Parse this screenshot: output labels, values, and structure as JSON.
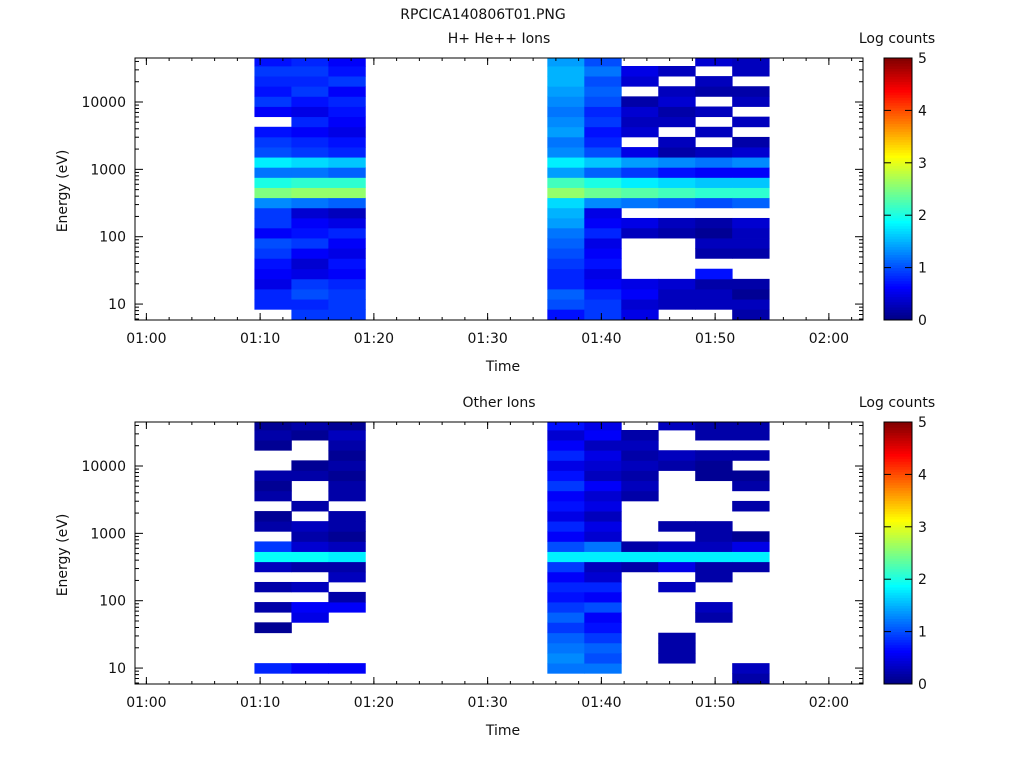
{
  "figure_title": "RPCICA140806T01.PNG",
  "chart_data": [
    {
      "type": "heatmap",
      "title": "H+ He++ Ions",
      "xlabel": "Time",
      "ylabel": "Energy (eV)",
      "colorbar_label": "Log counts",
      "xlim": [
        "00:59",
        "02:03"
      ],
      "x_ticks": [
        "01:00",
        "01:10",
        "01:20",
        "01:30",
        "01:40",
        "01:50",
        "02:00"
      ],
      "ylim": [
        5.8,
        45000
      ],
      "yscale": "log",
      "y_ticks": [
        "10",
        "100",
        "1000",
        "10000"
      ],
      "colorbar_range": [
        0,
        5
      ],
      "colorbar_ticks": [
        "0",
        "1",
        "2",
        "3",
        "4",
        "5"
      ],
      "column_times": [
        "01:09:30",
        "01:12:45",
        "01:16:00",
        "01:35:15",
        "01:38:30",
        "01:41:45",
        "01:45:00",
        "01:48:15",
        "01:51:30"
      ],
      "column_width_minutes": 3.25,
      "energy_bins_eV": [
        7,
        10,
        14,
        20,
        28,
        40,
        57,
        80,
        114,
        160,
        225,
        320,
        450,
        640,
        900,
        1280,
        1800,
        2550,
        3600,
        5100,
        7200,
        10200,
        14400,
        20400,
        28800,
        40700
      ],
      "log_counts": [
        [
          null,
          0.8,
          0.8,
          0.5,
          0.6,
          0.7,
          0.9,
          1.0,
          0.6,
          0.9,
          0.9,
          1.3,
          2.5,
          2.0,
          1.2,
          1.8,
          1.0,
          0.9,
          0.7,
          null,
          0.6,
          0.9,
          0.7,
          0.8,
          0.9,
          0.7
        ],
        [
          0.9,
          0.8,
          1.0,
          0.9,
          0.5,
          0.4,
          0.6,
          0.9,
          0.7,
          0.6,
          0.4,
          1.2,
          2.6,
          2.1,
          1.2,
          1.7,
          0.9,
          0.8,
          0.6,
          0.8,
          0.5,
          0.7,
          0.9,
          0.8,
          0.9,
          0.8
        ],
        [
          0.9,
          0.9,
          0.9,
          0.8,
          0.6,
          0.7,
          0.5,
          0.6,
          0.8,
          0.5,
          0.3,
          1.1,
          2.6,
          2.1,
          1.1,
          1.6,
          0.8,
          0.7,
          0.5,
          0.6,
          0.7,
          0.8,
          0.6,
          0.9,
          0.7,
          0.6
        ],
        [
          0.7,
          1.0,
          1.1,
          0.8,
          0.8,
          0.9,
          1.0,
          1.1,
          1.2,
          1.4,
          1.5,
          1.7,
          2.6,
          2.2,
          1.4,
          1.8,
          1.3,
          1.2,
          1.4,
          1.3,
          1.2,
          1.3,
          1.4,
          1.5,
          1.5,
          1.4
        ],
        [
          0.9,
          0.9,
          0.8,
          0.6,
          0.5,
          0.7,
          0.6,
          0.5,
          0.8,
          0.6,
          0.5,
          1.3,
          2.4,
          2.0,
          1.1,
          1.6,
          1.0,
          0.8,
          0.7,
          0.9,
          0.8,
          1.0,
          1.1,
          1.0,
          1.2,
          1.0
        ],
        [
          0.5,
          0.4,
          0.6,
          0.5,
          null,
          null,
          null,
          null,
          0.3,
          0.5,
          null,
          1.2,
          2.3,
          1.8,
          0.9,
          1.4,
          0.5,
          null,
          0.4,
          0.3,
          0.4,
          0.2,
          null,
          0.4,
          0.5,
          null
        ],
        [
          null,
          0.3,
          0.3,
          0.4,
          null,
          null,
          null,
          null,
          0.2,
          0.3,
          null,
          1.1,
          2.2,
          1.7,
          0.7,
          1.3,
          0.2,
          0.3,
          null,
          0.3,
          0.2,
          0.4,
          0.3,
          null,
          0.3,
          null
        ],
        [
          null,
          0.3,
          0.3,
          0.2,
          0.7,
          null,
          0.2,
          0.3,
          0.1,
          0.2,
          null,
          1.0,
          2.1,
          1.6,
          0.6,
          1.2,
          0.3,
          null,
          0.3,
          null,
          0.3,
          null,
          0.2,
          0.3,
          null,
          0.4
        ],
        [
          0.2,
          0.3,
          0.1,
          0.2,
          null,
          null,
          0.2,
          0.3,
          0.3,
          0.4,
          null,
          1.1,
          2.1,
          1.6,
          0.6,
          1.3,
          0.4,
          0.2,
          null,
          0.3,
          null,
          0.3,
          0.2,
          null,
          0.3,
          0.3
        ]
      ]
    },
    {
      "type": "heatmap",
      "title": "Other Ions",
      "xlabel": "Time",
      "ylabel": "Energy (eV)",
      "colorbar_label": "Log counts",
      "xlim": [
        "00:59",
        "02:03"
      ],
      "x_ticks": [
        "01:00",
        "01:10",
        "01:20",
        "01:30",
        "01:40",
        "01:50",
        "02:00"
      ],
      "ylim": [
        5.8,
        45000
      ],
      "yscale": "log",
      "y_ticks": [
        "10",
        "100",
        "1000",
        "10000"
      ],
      "colorbar_range": [
        0,
        5
      ],
      "colorbar_ticks": [
        "0",
        "1",
        "2",
        "3",
        "4",
        "5"
      ],
      "column_times": [
        "01:09:30",
        "01:12:45",
        "01:16:00",
        "01:35:15",
        "01:38:30",
        "01:41:45",
        "01:45:00",
        "01:48:15",
        "01:51:30"
      ],
      "column_width_minutes": 3.25,
      "energy_bins_eV": [
        7,
        10,
        14,
        20,
        28,
        40,
        57,
        80,
        114,
        160,
        225,
        320,
        450,
        640,
        900,
        1280,
        1800,
        2550,
        3600,
        5100,
        7200,
        10200,
        14400,
        20400,
        28800,
        40700
      ],
      "log_counts": [
        [
          null,
          0.8,
          null,
          null,
          null,
          0.1,
          null,
          0.2,
          null,
          0.2,
          null,
          0.3,
          1.9,
          0.9,
          null,
          0.2,
          0.1,
          null,
          0.2,
          0.1,
          0.2,
          null,
          null,
          0.1,
          0.2,
          0.1
        ],
        [
          null,
          0.6,
          null,
          null,
          null,
          null,
          0.5,
          0.6,
          null,
          0.3,
          null,
          0.2,
          1.9,
          0.4,
          0.2,
          0.3,
          null,
          0.2,
          null,
          null,
          0.2,
          0.1,
          null,
          null,
          0.1,
          0.2
        ],
        [
          null,
          0.6,
          null,
          null,
          null,
          null,
          null,
          0.6,
          0.2,
          null,
          0.3,
          0.2,
          1.8,
          0.3,
          0.1,
          0.2,
          0.2,
          null,
          0.2,
          0.2,
          0.1,
          0.2,
          0.1,
          0.2,
          0.3,
          0.1
        ],
        [
          null,
          1.2,
          1.3,
          1.2,
          1.1,
          0.9,
          1.1,
          0.9,
          0.7,
          0.8,
          0.6,
          0.9,
          1.8,
          1.0,
          0.6,
          0.8,
          0.5,
          0.7,
          0.6,
          0.9,
          0.7,
          0.5,
          0.8,
          0.6,
          0.4,
          0.7
        ],
        [
          null,
          1.2,
          1.0,
          1.1,
          0.9,
          0.7,
          0.6,
          1.0,
          0.6,
          0.8,
          0.4,
          0.3,
          1.8,
          1.2,
          0.4,
          0.5,
          0.3,
          0.5,
          0.4,
          0.6,
          0.3,
          0.4,
          0.5,
          0.3,
          0.6,
          0.5
        ],
        [
          null,
          null,
          null,
          null,
          null,
          null,
          null,
          null,
          null,
          null,
          null,
          0.2,
          1.8,
          0.2,
          null,
          null,
          null,
          null,
          0.2,
          0.3,
          0.2,
          0.3,
          0.2,
          0.3,
          0.2,
          null
        ],
        [
          null,
          null,
          0.2,
          0.2,
          0.2,
          null,
          null,
          null,
          null,
          0.3,
          null,
          0.5,
          1.8,
          0.3,
          null,
          0.2,
          null,
          null,
          null,
          null,
          null,
          0.2,
          0.3,
          null,
          null,
          0.3
        ],
        [
          null,
          null,
          null,
          null,
          null,
          null,
          0.2,
          0.3,
          null,
          null,
          0.2,
          0.2,
          1.8,
          0.3,
          0.2,
          0.2,
          null,
          null,
          null,
          null,
          0.1,
          0.1,
          0.2,
          null,
          0.2,
          0.2
        ],
        [
          0.2,
          0.3,
          null,
          null,
          null,
          null,
          null,
          null,
          null,
          null,
          null,
          0.2,
          1.8,
          0.5,
          0.1,
          null,
          null,
          0.2,
          null,
          0.2,
          0.1,
          null,
          0.2,
          null,
          0.2,
          0.2
        ]
      ]
    }
  ]
}
